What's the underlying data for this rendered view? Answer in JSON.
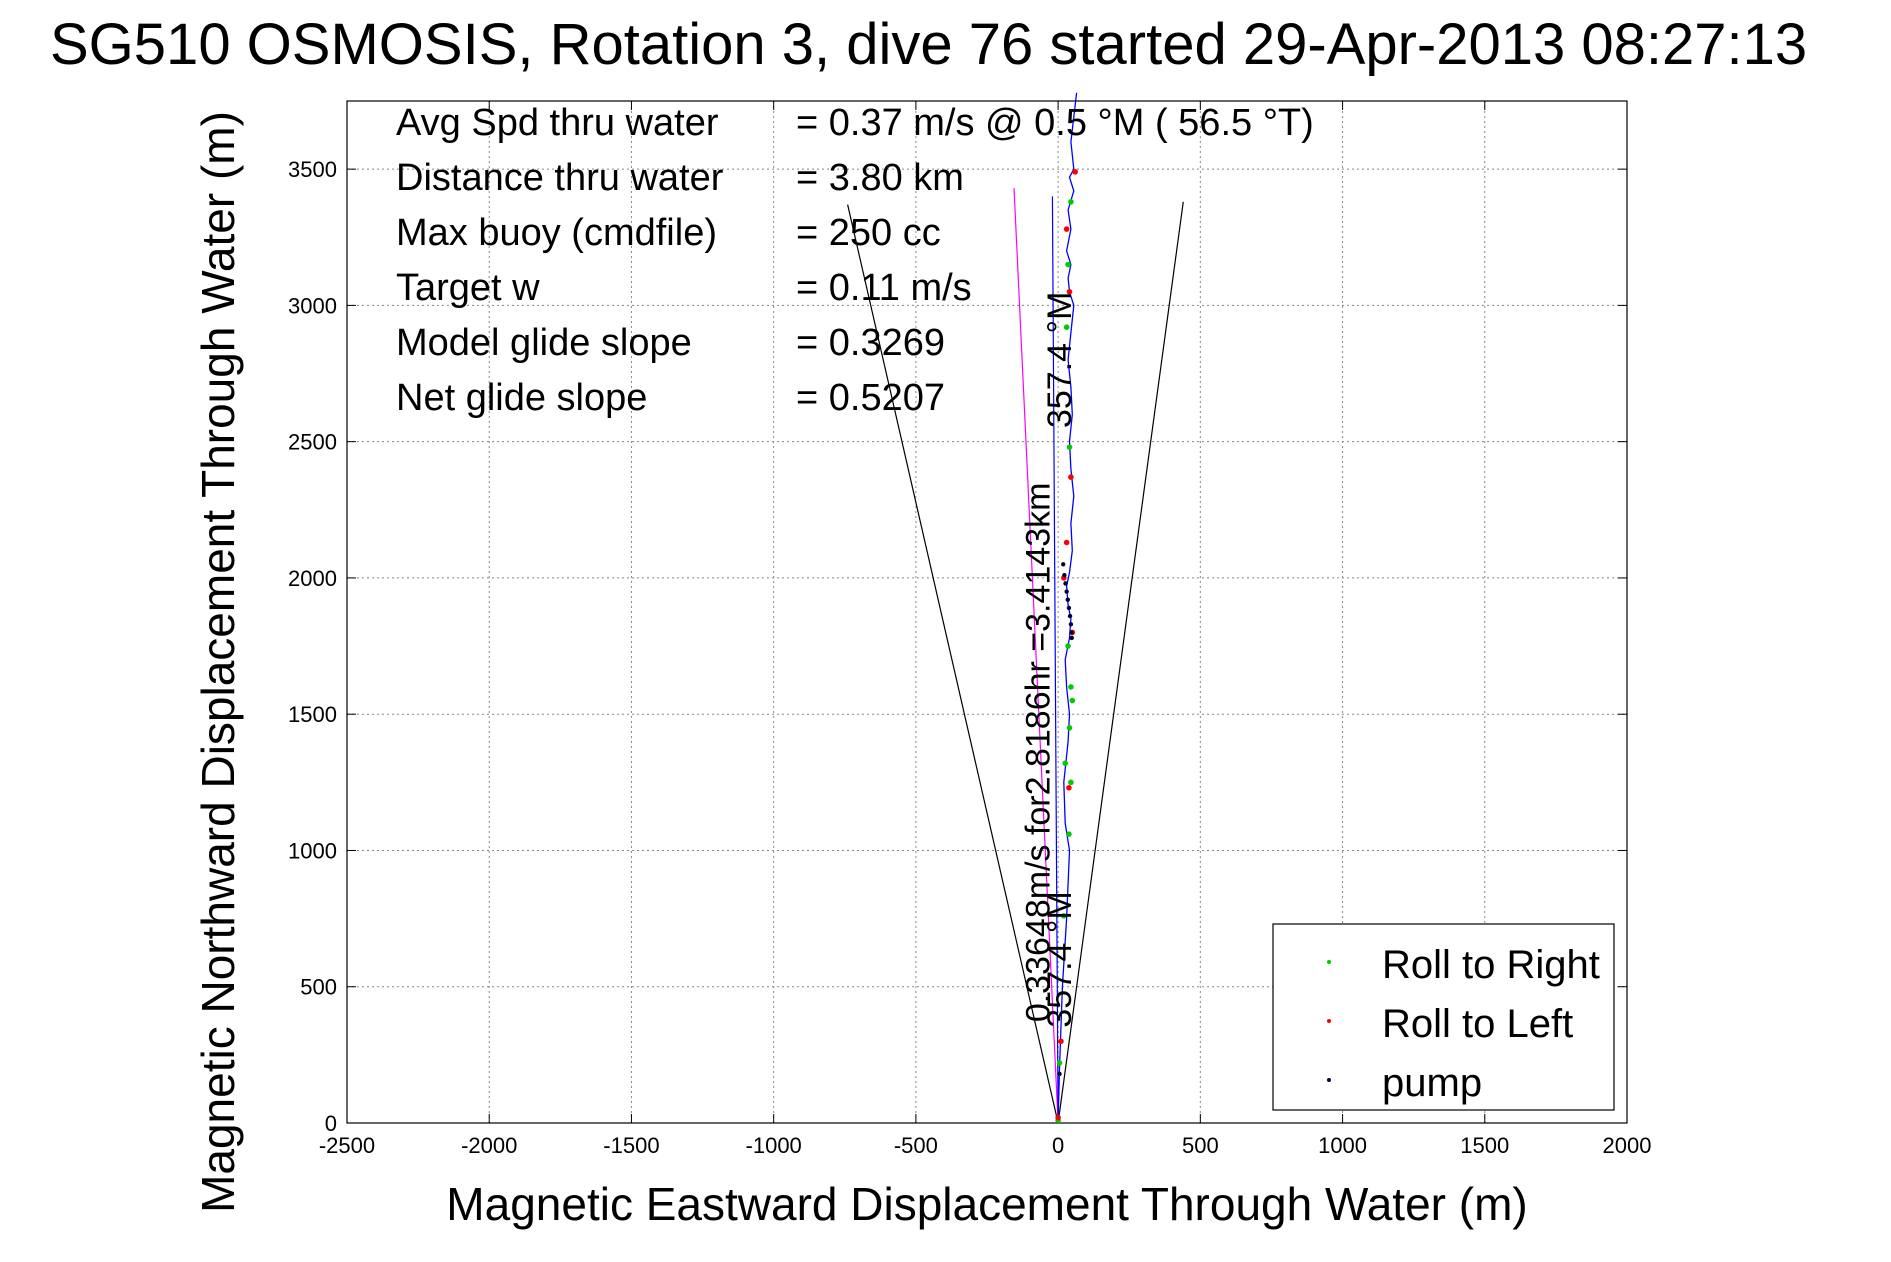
{
  "chart_data": {
    "type": "scatter",
    "title": "SG510 OSMOSIS, Rotation 3, dive 76 started 29-Apr-2013 08:27:13",
    "xlabel": "Magnetic Eastward Displacement Through Water (m)",
    "ylabel": "Magnetic Northward Displacement Through Water (m)",
    "xlim": [
      -2500,
      2000
    ],
    "ylim": [
      0,
      3750
    ],
    "x_ticks": [
      -2500,
      -2000,
      -1500,
      -1000,
      -500,
      0,
      500,
      1000,
      1500,
      2000
    ],
    "y_ticks": [
      0,
      500,
      1000,
      1500,
      2000,
      2500,
      3000,
      3500
    ],
    "grid": true,
    "legend_position": "bottom-right",
    "info_lines": [
      {
        "label": "Avg Spd thru water",
        "value": "=  0.37 m/s @   0.5 °M ( 56.5 °T)"
      },
      {
        "label": "Distance thru water",
        "value": "=  3.80 km"
      },
      {
        "label": "Max buoy (cmdfile)",
        "value": "= 250 cc"
      },
      {
        "label": "Target w",
        "value": "= 0.11 m/s"
      },
      {
        "label": "Model glide slope",
        "value": "= 0.3269"
      },
      {
        "label": "Net glide slope",
        "value": "= 0.5207"
      }
    ],
    "annotations": [
      {
        "text": "0.33648m/s for2.8186hr =3.4143km",
        "x": -30,
        "y": 370,
        "rotation": -90
      },
      {
        "text": "357.4 °M",
        "x": 45,
        "y": 350,
        "rotation": -90
      },
      {
        "text": "357.4 °M",
        "x": 45,
        "y": 2550,
        "rotation": -90
      }
    ],
    "glide_cone_lines": [
      {
        "name": "cone-left",
        "x": [
          0,
          -740
        ],
        "y": [
          0,
          3370
        ]
      },
      {
        "name": "cone-right",
        "x": [
          0,
          440
        ],
        "y": [
          0,
          3380
        ]
      }
    ],
    "heading_lines": [
      {
        "name": "magenta-heading",
        "color": "#ff00ff",
        "x": [
          0,
          -155
        ],
        "y": [
          0,
          3430
        ]
      },
      {
        "name": "blue-heading",
        "color": "#0000ff",
        "x": [
          0,
          -20
        ],
        "y": [
          0,
          3400
        ]
      }
    ],
    "track": {
      "name": "dive-track",
      "color": "#0000ff",
      "x": [
        0,
        5,
        15,
        30,
        40,
        25,
        20,
        35,
        40,
        30,
        25,
        40,
        45,
        35,
        30,
        40,
        50,
        45,
        55,
        45,
        40,
        50,
        45,
        35,
        45,
        55,
        40,
        35,
        45,
        30,
        45,
        35,
        55,
        40,
        55,
        45,
        65
      ],
      "y": [
        0,
        200,
        500,
        750,
        1000,
        1100,
        1250,
        1400,
        1500,
        1600,
        1700,
        1780,
        1850,
        1900,
        1970,
        2020,
        2100,
        2200,
        2300,
        2400,
        2500,
        2600,
        2700,
        2800,
        2900,
        3000,
        3050,
        3100,
        3150,
        3200,
        3280,
        3350,
        3420,
        3470,
        3500,
        3600,
        3780
      ]
    },
    "series": [
      {
        "name": "Roll to Right",
        "color": "#00cc00",
        "x": [
          0,
          5,
          20,
          38,
          45,
          25,
          40,
          50,
          45,
          35,
          40,
          30,
          35,
          45
        ],
        "y": [
          10,
          220,
          760,
          1060,
          1250,
          1320,
          1450,
          1550,
          1600,
          1750,
          2480,
          2920,
          3150,
          3380
        ]
      },
      {
        "name": "Roll to Left",
        "color": "#ff0000",
        "x": [
          0,
          10,
          38,
          50,
          20,
          30,
          45,
          40,
          30,
          60
        ],
        "y": [
          20,
          300,
          1230,
          1800,
          2000,
          2130,
          2370,
          3050,
          3280,
          3490
        ]
      },
      {
        "name": "pump",
        "color": "#000033",
        "x": [
          5,
          18,
          22,
          26,
          30,
          34,
          38,
          42,
          45,
          47,
          48
        ],
        "y": [
          180,
          2050,
          2010,
          1980,
          1950,
          1920,
          1890,
          1860,
          1830,
          1800,
          1780
        ]
      }
    ]
  }
}
